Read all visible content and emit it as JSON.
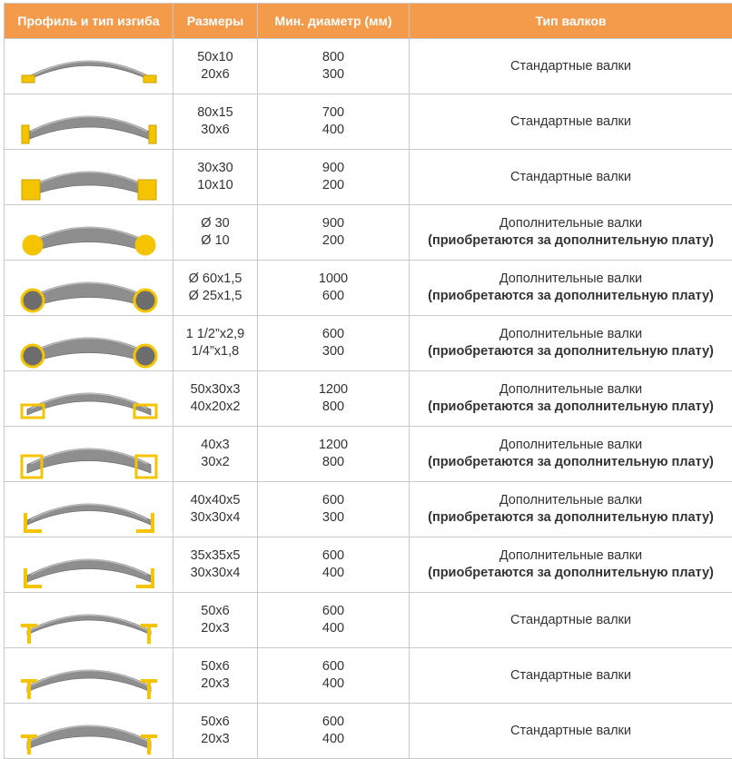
{
  "header": {
    "profile": "Профиль и тип изгиба",
    "sizes": "Размеры",
    "min_diameter": "Мин. диаметр (мм)",
    "roller_type": "Тип валков"
  },
  "colors": {
    "header_bg": "#f39a4b",
    "profile_steel": "#8e8e8e",
    "profile_section": "#f5c400"
  },
  "rows": [
    {
      "profile_icon": "flat-strip-profile-icon",
      "sizes": [
        "50x10",
        "20x6"
      ],
      "diameters": [
        "800",
        "300"
      ],
      "rollers": [
        "Стандартные валки"
      ]
    },
    {
      "profile_icon": "flat-bar-edgewise-profile-icon",
      "sizes": [
        "80x15",
        "30x6"
      ],
      "diameters": [
        "700",
        "400"
      ],
      "rollers": [
        "Стандартные валки"
      ]
    },
    {
      "profile_icon": "square-bar-profile-icon",
      "sizes": [
        "30x30",
        "10x10"
      ],
      "diameters": [
        "900",
        "200"
      ],
      "rollers": [
        "Стандартные валки"
      ]
    },
    {
      "profile_icon": "round-bar-profile-icon",
      "sizes": [
        "Ø 30",
        "Ø 10"
      ],
      "diameters": [
        "900",
        "200"
      ],
      "rollers": [
        "Дополнительные валки",
        "(приобретаются за дополнительную плату)"
      ]
    },
    {
      "profile_icon": "round-tube-profile-icon",
      "sizes": [
        "Ø 60x1,5",
        "Ø 25x1,5"
      ],
      "diameters": [
        "1000",
        "600"
      ],
      "rollers": [
        "Дополнительные валки",
        "(приобретаются за дополнительную плату)"
      ]
    },
    {
      "profile_icon": "round-tube-inch-profile-icon",
      "sizes": [
        "1 1/2”x2,9",
        "1/4”x1,8"
      ],
      "diameters": [
        "600",
        "300"
      ],
      "rollers": [
        "Дополнительные валки",
        "(приобретаются за дополнительную плату)"
      ]
    },
    {
      "profile_icon": "rectangular-tube-profile-icon",
      "sizes": [
        "50x30x3",
        "40x20x2"
      ],
      "diameters": [
        "1200",
        "800"
      ],
      "rollers": [
        "Дополнительные валки",
        "(приобретаются за дополнительную плату)"
      ]
    },
    {
      "profile_icon": "square-tube-profile-icon",
      "sizes": [
        "40x3",
        "30x2"
      ],
      "diameters": [
        "1200",
        "800"
      ],
      "rollers": [
        "Дополнительные валки",
        "(приобретаются за дополнительную плату)"
      ]
    },
    {
      "profile_icon": "angle-outward-profile-icon",
      "sizes": [
        "40x40x5",
        "30x30x4"
      ],
      "diameters": [
        "600",
        "300"
      ],
      "rollers": [
        "Дополнительные валки",
        "(приобретаются за дополнительную плату)"
      ]
    },
    {
      "profile_icon": "angle-inward-profile-icon",
      "sizes": [
        "35x35x5",
        "30x30x4"
      ],
      "diameters": [
        "600",
        "400"
      ],
      "rollers": [
        "Дополнительные валки",
        "(приобретаются за дополнительную плату)"
      ]
    },
    {
      "profile_icon": "t-bar-profile-icon",
      "sizes": [
        "50x6",
        "20x3"
      ],
      "diameters": [
        "600",
        "400"
      ],
      "rollers": [
        "Стандартные валки"
      ]
    },
    {
      "profile_icon": "t-bar-inverted-profile-icon",
      "sizes": [
        "50x6",
        "20x3"
      ],
      "diameters": [
        "600",
        "400"
      ],
      "rollers": [
        "Стандартные валки"
      ]
    },
    {
      "profile_icon": "t-bar-flange-profile-icon",
      "sizes": [
        "50x6",
        "20x3"
      ],
      "diameters": [
        "600",
        "400"
      ],
      "rollers": [
        "Стандартные валки"
      ]
    }
  ]
}
